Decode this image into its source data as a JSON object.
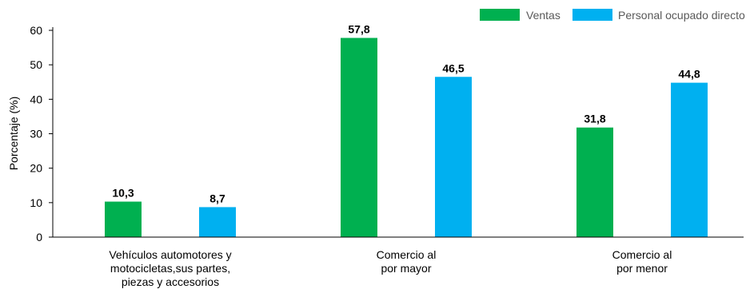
{
  "chart_data": {
    "type": "bar",
    "categories": [
      [
        "Vehículos automotores y",
        "motocicletas,sus partes,",
        "piezas y accesorios"
      ],
      [
        "Comercio al",
        "por mayor"
      ],
      [
        "Comercio al",
        "por menor"
      ]
    ],
    "series": [
      {
        "name": "Ventas",
        "color": "#00b050",
        "values": [
          10.3,
          57.8,
          31.8
        ],
        "labels": [
          "10,3",
          "57,8",
          "31,8"
        ]
      },
      {
        "name": "Personal ocupado directo",
        "color": "#00b0f0",
        "values": [
          8.7,
          46.5,
          44.8
        ],
        "labels": [
          "8,7",
          "46,5",
          "44,8"
        ]
      }
    ],
    "ylabel": "Porcentaje (%)",
    "ylim": [
      0,
      60
    ],
    "yticks": [
      "0",
      "10",
      "20",
      "30",
      "40",
      "50",
      "60"
    ],
    "grid": false,
    "legend": "top-right"
  }
}
